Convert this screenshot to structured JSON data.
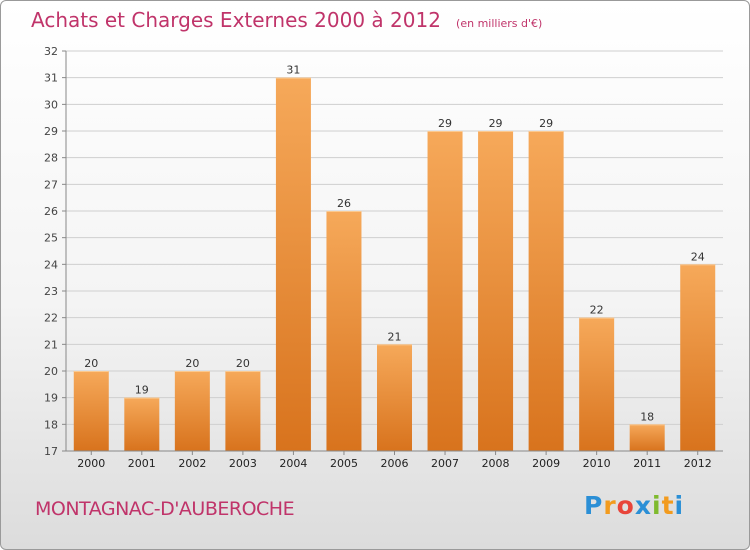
{
  "title": "Achats et Charges Externes 2000 à 2012",
  "subtitle": "(en milliers d'€)",
  "commune": "MONTAGNAC-D'AUBEROCHE",
  "logo": {
    "text": "Proxiti",
    "letters": [
      "P",
      "r",
      "o",
      "x",
      "i",
      "t",
      "i"
    ],
    "colors": [
      "#2b8fd6",
      "#f29b1e",
      "#e8443a",
      "#2b8fd6",
      "#7fba2e",
      "#f29b1e",
      "#2b8fd6"
    ]
  },
  "colors": {
    "title": "#c0346a",
    "bar_top": "#f6a95a",
    "bar_bottom": "#d8731d",
    "grid": "#cfcfcf",
    "axis": "#888888"
  },
  "chart_data": {
    "type": "bar",
    "categories": [
      "2000",
      "2001",
      "2002",
      "2003",
      "2004",
      "2005",
      "2006",
      "2007",
      "2008",
      "2009",
      "2010",
      "2011",
      "2012"
    ],
    "values": [
      20,
      19,
      20,
      20,
      31,
      26,
      21,
      29,
      29,
      29,
      22,
      18,
      24
    ],
    "ylim": [
      17,
      32
    ],
    "yticks": [
      17,
      18,
      19,
      20,
      21,
      22,
      23,
      24,
      25,
      26,
      27,
      28,
      29,
      30,
      31,
      32
    ],
    "grid": true,
    "data_labels": true
  }
}
